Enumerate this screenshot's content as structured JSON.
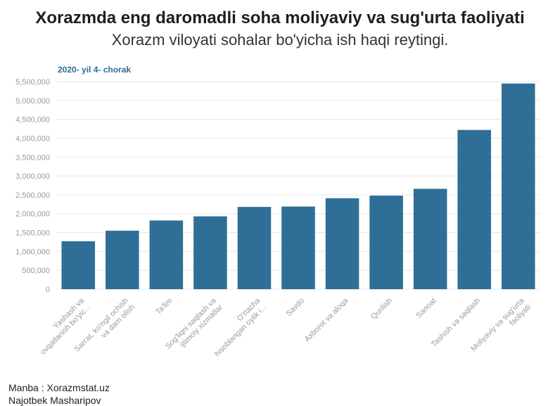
{
  "header": {
    "title": "Xorazmda eng daromadli soha moliyaviy va sug'urta faoliyati",
    "subtitle": "Xorazm viloyati sohalar bo'yicha ish haqi reytingi.",
    "period": "2020- yil 4- chorak"
  },
  "footer": {
    "source": "Manba : Xorazmstat.uz",
    "author": "Najotbek Masharipov"
  },
  "colors": {
    "bar": "#2f6f97",
    "grid": "#e6e6e6",
    "tick_text": "#9a9a9a"
  },
  "chart_data": {
    "type": "bar",
    "title": "Xorazmda eng daromadli soha moliyaviy va sug'urta faoliyati",
    "subtitle": "Xorazm viloyati sohalar bo'yicha ish haqi reytingi.",
    "xlabel": "",
    "ylabel": "",
    "ylim": [
      0,
      5500000
    ],
    "yticks": [
      0,
      500000,
      1000000,
      1500000,
      2000000,
      2500000,
      3000000,
      3500000,
      4000000,
      4500000,
      5000000,
      5500000
    ],
    "ytick_labels": [
      "0",
      "500,000",
      "1,000,000",
      "1,500,000",
      "2,000,000",
      "2,500,000",
      "3,000,000",
      "3,500,000",
      "4,000,000",
      "4,500,000",
      "5,000,000",
      "5,500,000"
    ],
    "grid": true,
    "categories": [
      [
        "Yashash va",
        "ovqatlanish bo'yic..."
      ],
      [
        "San'at, ko'ngil ochish",
        "va dam olish"
      ],
      [
        "Ta'lim"
      ],
      [
        "Sog'liqni saqlash va",
        "ijtimoiy xizmatlar"
      ],
      [
        "O'rtacha",
        "hisoblangan oylik i..."
      ],
      [
        "Savdo"
      ],
      [
        "Axborot va aloqa"
      ],
      [
        "Qurilish"
      ],
      [
        "Sanoat"
      ],
      [
        "Tashish va saqlash"
      ],
      [
        "Moliyaviy va sug'urta",
        "faoliyati"
      ]
    ],
    "values": [
      1270000,
      1550000,
      1820000,
      1930000,
      2180000,
      2190000,
      2410000,
      2480000,
      2660000,
      4220000,
      5450000
    ]
  }
}
